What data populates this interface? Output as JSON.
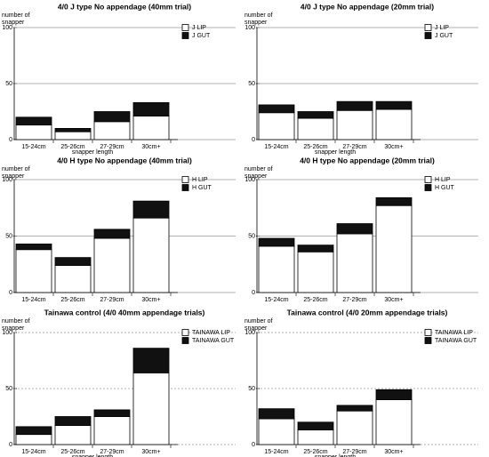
{
  "chart_data": [
    {
      "type": "bar",
      "stacked": true,
      "title": "4/0 J type No appendage (40mm trial)",
      "y_label": "number of snapper",
      "x_label": "snapper length",
      "categories": [
        "15-24cm",
        "25-26cm",
        "27-29cm",
        "30cm+"
      ],
      "series": [
        {
          "name": "J LIP",
          "color": "#ffffff",
          "values": [
            13,
            7,
            16,
            21
          ]
        },
        {
          "name": "J GUT",
          "color": "#111111",
          "values": [
            7,
            3,
            9,
            12
          ]
        }
      ],
      "ylim": [
        0,
        100
      ],
      "yticks": [
        0,
        50,
        100
      ],
      "grid": true,
      "grid_dashed": false,
      "legend": "top-right"
    },
    {
      "type": "bar",
      "stacked": true,
      "title": "4/0 J type No appendage (20mm trial)",
      "y_label": "number of snapper",
      "x_label": "snapper length",
      "categories": [
        "15-24cm",
        "25-26cm",
        "27-29cm",
        "30cm+"
      ],
      "series": [
        {
          "name": "J LIP",
          "color": "#ffffff",
          "values": [
            24,
            19,
            26,
            27
          ]
        },
        {
          "name": "J GUT",
          "color": "#111111",
          "values": [
            7,
            6,
            8,
            7
          ]
        }
      ],
      "ylim": [
        0,
        100
      ],
      "yticks": [
        0,
        50,
        100
      ],
      "grid": true,
      "grid_dashed": false,
      "legend": "top-right"
    },
    {
      "type": "bar",
      "stacked": true,
      "title": "4/0 H type No appendage (40mm trial)",
      "y_label": "number of snapper",
      "categories": [
        "15-24cm",
        "25-26cm",
        "27-29cm",
        "30cm+"
      ],
      "series": [
        {
          "name": "H LIP",
          "color": "#ffffff",
          "values": [
            38,
            24,
            48,
            66
          ]
        },
        {
          "name": "H GUT",
          "color": "#111111",
          "values": [
            5,
            7,
            8,
            15
          ]
        }
      ],
      "ylim": [
        0,
        100
      ],
      "yticks": [
        0,
        50,
        100
      ],
      "grid": true,
      "grid_dashed": false,
      "legend": "top-right"
    },
    {
      "type": "bar",
      "stacked": true,
      "title": "4/0 H type No appendage (20mm trial)",
      "y_label": "number of snapper",
      "categories": [
        "15-24cm",
        "25-26cm",
        "27-29cm",
        "30cm+"
      ],
      "series": [
        {
          "name": "H LIP",
          "color": "#ffffff",
          "values": [
            41,
            36,
            52,
            77
          ]
        },
        {
          "name": "H GUT",
          "color": "#111111",
          "values": [
            7,
            6,
            9,
            7
          ]
        }
      ],
      "ylim": [
        0,
        100
      ],
      "yticks": [
        0,
        50,
        100
      ],
      "grid": true,
      "grid_dashed": false,
      "legend": "top-right"
    },
    {
      "type": "bar",
      "stacked": true,
      "title": "Tainawa control (4/0 40mm appendage trials)",
      "y_label": "number of snapper",
      "x_label": "snapper length",
      "categories": [
        "15-24cm",
        "25-26cm",
        "27-29cm",
        "30cm+"
      ],
      "series": [
        {
          "name": "TAINAWA LIP",
          "color": "#ffffff",
          "values": [
            9,
            17,
            25,
            64
          ]
        },
        {
          "name": "TAINAWA GUT",
          "color": "#111111",
          "values": [
            7,
            8,
            6,
            22
          ]
        }
      ],
      "ylim": [
        0,
        100
      ],
      "yticks": [
        0,
        50,
        100
      ],
      "grid": true,
      "grid_dashed": true,
      "legend": "top-right"
    },
    {
      "type": "bar",
      "stacked": true,
      "title": "Tainawa control (4/0 20mm appendage trials)",
      "y_label": "number of snapper",
      "x_label": "snapper length",
      "categories": [
        "15-24cm",
        "25-26cm",
        "27-29cm",
        "30cm+"
      ],
      "series": [
        {
          "name": "TAINAWA LIP",
          "color": "#ffffff",
          "values": [
            23,
            13,
            30,
            40
          ]
        },
        {
          "name": "TAINAWA GUT",
          "color": "#111111",
          "values": [
            9,
            7,
            5,
            9
          ]
        }
      ],
      "ylim": [
        0,
        100
      ],
      "yticks": [
        0,
        50,
        100
      ],
      "grid": true,
      "grid_dashed": true,
      "legend": "top-right"
    }
  ]
}
